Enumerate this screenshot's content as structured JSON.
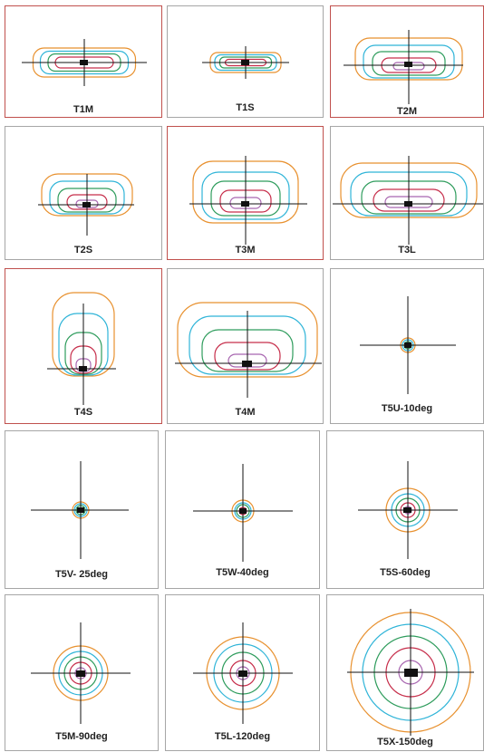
{
  "colors": {
    "contour_order": [
      "#e8912f",
      "#2fb4d8",
      "#2e9c5c",
      "#c62d4a",
      "#a866b0"
    ],
    "crosshair": "#111111",
    "luminaire": "#111111",
    "panel_border": "#a6a6a6",
    "panel_highlight_border": "#c0504d"
  },
  "panels": [
    {
      "label": "T1M",
      "highlighted": true
    },
    {
      "label": "T1S",
      "highlighted": false
    },
    {
      "label": "T2M",
      "highlighted": true
    },
    {
      "label": "T2S",
      "highlighted": false
    },
    {
      "label": "T3M",
      "highlighted": true
    },
    {
      "label": "T3L",
      "highlighted": false
    },
    {
      "label": "T4S",
      "highlighted": true
    },
    {
      "label": "T4M",
      "highlighted": false
    },
    {
      "label": "T5U-10deg",
      "highlighted": false
    },
    {
      "label": "T5V- 25deg",
      "highlighted": false
    },
    {
      "label": "T5W-40deg",
      "highlighted": false
    },
    {
      "label": "T5S-60deg",
      "highlighted": false
    },
    {
      "label": "T5M-90deg",
      "highlighted": false
    },
    {
      "label": "T5L-120deg",
      "highlighted": false
    },
    {
      "label": "T5X-150deg",
      "highlighted": false
    }
  ]
}
